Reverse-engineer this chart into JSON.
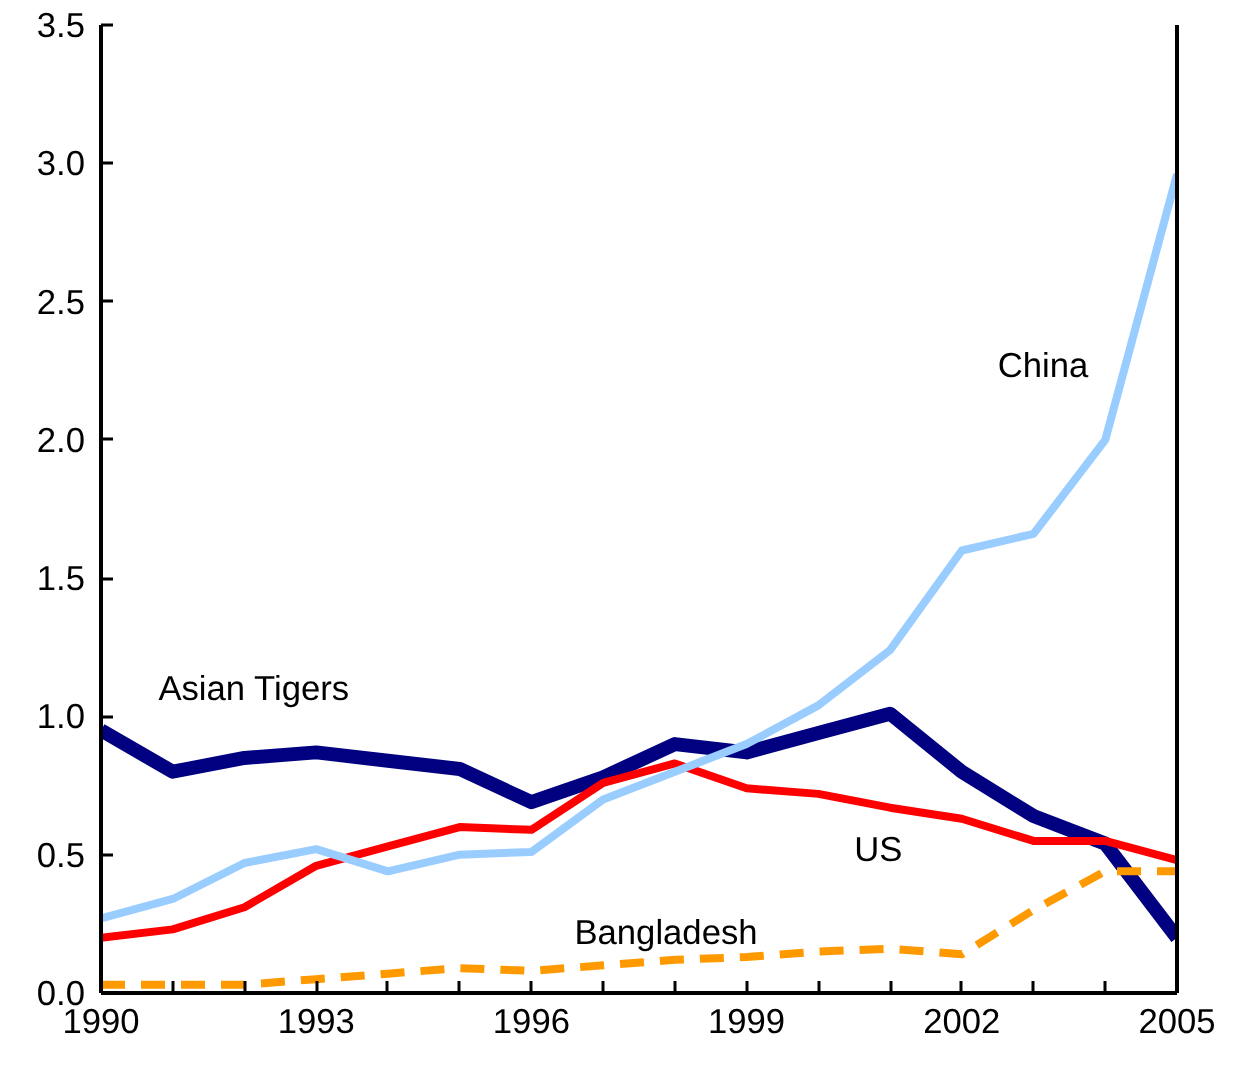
{
  "chart_data": {
    "type": "line",
    "x": [
      1990,
      1991,
      1992,
      1993,
      1994,
      1995,
      1996,
      1997,
      1998,
      1999,
      2000,
      2001,
      2002,
      2003,
      2004,
      2005
    ],
    "series": [
      {
        "name": "Asian Tigers",
        "color": "#000080",
        "values": [
          0.95,
          0.8,
          0.85,
          0.87,
          0.84,
          0.81,
          0.69,
          0.78,
          0.9,
          0.87,
          0.94,
          1.01,
          0.8,
          0.64,
          0.54,
          0.2
        ]
      },
      {
        "name": "US",
        "color": "#ff0000",
        "values": [
          0.2,
          0.23,
          0.31,
          0.46,
          0.53,
          0.6,
          0.59,
          0.76,
          0.83,
          0.74,
          0.72,
          0.67,
          0.63,
          0.55,
          0.55,
          0.48
        ]
      },
      {
        "name": "China",
        "color": "#99ccff",
        "values": [
          0.27,
          0.34,
          0.47,
          0.52,
          0.44,
          0.5,
          0.51,
          0.7,
          0.8,
          0.9,
          1.04,
          1.24,
          1.6,
          1.66,
          2.0,
          2.96
        ]
      },
      {
        "name": "Bangladesh",
        "color": "#ff9900",
        "line_style": "dashed",
        "values": [
          0.03,
          0.03,
          0.03,
          0.05,
          0.07,
          0.09,
          0.08,
          0.1,
          0.12,
          0.13,
          0.15,
          0.16,
          0.14,
          0.3,
          0.44,
          0.44
        ]
      }
    ],
    "xlim": [
      1990,
      2005
    ],
    "ylim": [
      0,
      3.5
    ],
    "xticks": [
      1990,
      {
        "value": 1991,
        "label": null
      },
      {
        "value": 1992,
        "label": null
      },
      1993,
      {
        "value": 1994,
        "label": null
      },
      {
        "value": 1995,
        "label": null
      },
      1996,
      {
        "value": 1997,
        "label": null
      },
      {
        "value": 1998,
        "label": null
      },
      1999,
      {
        "value": 2000,
        "label": null
      },
      {
        "value": 2001,
        "label": null
      },
      2002,
      {
        "value": 2003,
        "label": null
      },
      {
        "value": 2004,
        "label": null
      },
      2005
    ],
    "yticks": [
      {
        "value": 0,
        "label": "0.0"
      },
      0.5,
      {
        "value": 1,
        "label": "1.0"
      },
      1.5,
      {
        "value": 2,
        "label": "2.0"
      },
      2.5,
      {
        "value": 3,
        "label": "3.0"
      },
      3.5
    ],
    "grid": false
  }
}
